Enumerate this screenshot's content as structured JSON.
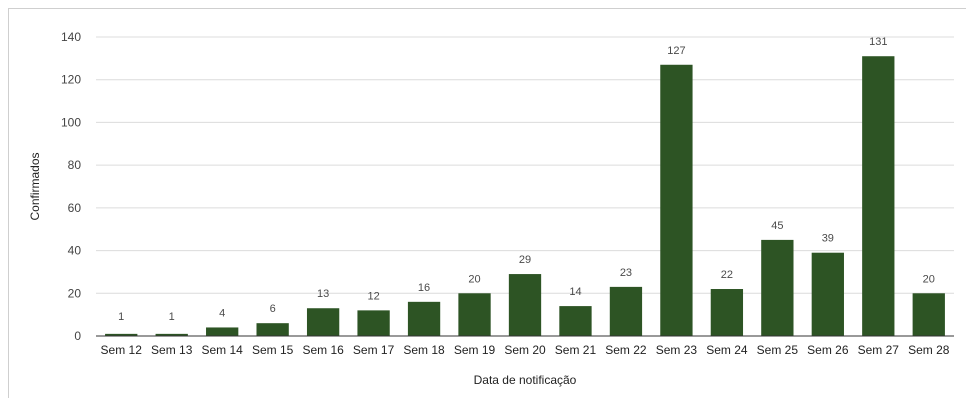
{
  "chart_data": {
    "type": "bar",
    "title": "",
    "xlabel": "Data de notificação",
    "ylabel": "Confirmados",
    "ylim": [
      0,
      140
    ],
    "yticks": [
      0,
      20,
      40,
      60,
      80,
      100,
      120,
      140
    ],
    "grid": true,
    "bar_color": "#2d5424",
    "categories": [
      "Sem 12",
      "Sem 13",
      "Sem 14",
      "Sem 15",
      "Sem 16",
      "Sem 17",
      "Sem 18",
      "Sem 19",
      "Sem 20",
      "Sem 21",
      "Sem 22",
      "Sem 23",
      "Sem 24",
      "Sem 25",
      "Sem 26",
      "Sem 27",
      "Sem 28"
    ],
    "values": [
      1,
      1,
      4,
      6,
      13,
      12,
      16,
      20,
      29,
      14,
      23,
      127,
      22,
      45,
      39,
      131,
      20
    ]
  }
}
